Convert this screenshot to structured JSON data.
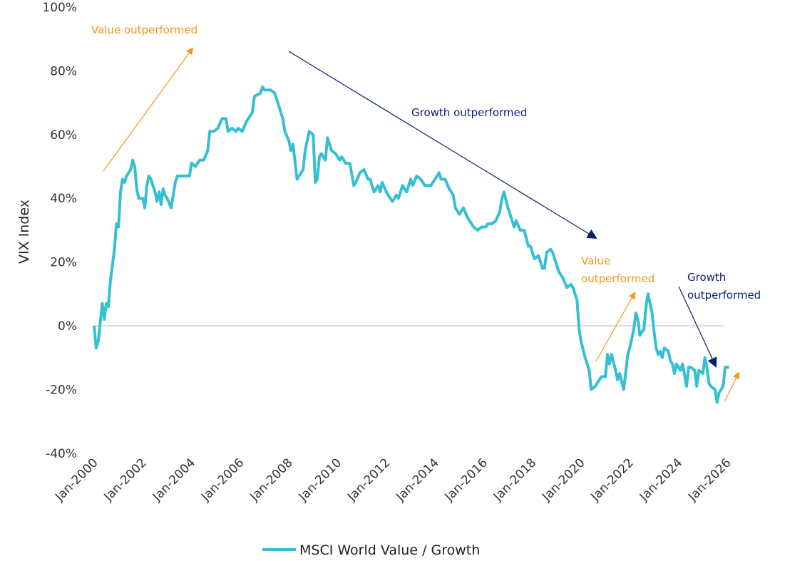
{
  "chart_data": {
    "type": "line",
    "title": "",
    "xlabel": "",
    "ylabel": "VIX Index",
    "ylim": [
      -40,
      100
    ],
    "yticks": [
      "100%",
      "80%",
      "60%",
      "40%",
      "20%",
      "0%",
      "-20%",
      "-40%"
    ],
    "ytick_values": [
      100,
      80,
      60,
      40,
      20,
      0,
      -20,
      -40
    ],
    "xticks": [
      "Jan-2000",
      "Jan-2002",
      "Jan-2004",
      "Jan-2006",
      "Jan-2008",
      "Jan-2010",
      "Jan-2012",
      "Jan-2014",
      "Jan-2016",
      "Jan-2018",
      "Jan-2020",
      "Jan-2022",
      "Jan-2024",
      "Jan-2026"
    ],
    "xlim": [
      "2000-01",
      "2026-03"
    ],
    "grid": false,
    "zero_line": true,
    "legend_placement": "bottom",
    "colors": {
      "series": "#36BFD3",
      "value_annotation": "#F7941D",
      "growth_annotation": "#0B1F6B",
      "zero_line": "#D0D0D0"
    },
    "annotations": [
      {
        "text": "Value outperformed",
        "color": "#F7941D",
        "arrow": "up"
      },
      {
        "text": "Growth outperformed",
        "color": "#0B1F6B",
        "arrow": "down"
      },
      {
        "text_lines": [
          "Value",
          "outperformed"
        ],
        "color": "#F7941D",
        "arrow": "up"
      },
      {
        "text_lines": [
          "Growth",
          "outperformed"
        ],
        "color": "#0B1F6B",
        "arrow": "down"
      },
      {
        "text": "",
        "color": "#F7941D",
        "arrow": "up"
      }
    ],
    "series": [
      {
        "name": "MSCI World Value / Growth",
        "x": [
          "2000-01",
          "2000-02",
          "2000-03",
          "2000-05",
          "2000-06",
          "2000-07",
          "2000-08",
          "2000-09",
          "2000-11",
          "2000-12",
          "2001-01",
          "2001-02",
          "2001-03",
          "2001-04",
          "2001-05",
          "2001-07",
          "2001-08",
          "2001-09",
          "2001-10",
          "2001-11",
          "2002-01",
          "2002-02",
          "2002-03",
          "2002-04",
          "2002-05",
          "2002-07",
          "2002-08",
          "2002-09",
          "2002-10",
          "2002-11",
          "2002-12",
          "2003-01",
          "2003-03",
          "2003-05",
          "2003-06",
          "2003-10",
          "2003-12",
          "2004-01",
          "2004-03",
          "2004-05",
          "2004-07",
          "2004-09",
          "2004-10",
          "2004-12",
          "2005-02",
          "2005-04",
          "2005-06",
          "2005-07",
          "2005-09",
          "2005-11",
          "2005-12",
          "2006-02",
          "2006-04",
          "2006-06",
          "2006-07",
          "2006-08",
          "2006-11",
          "2006-12",
          "2007-01",
          "2007-04",
          "2007-06",
          "2007-08",
          "2007-10",
          "2007-11",
          "2008-01",
          "2008-02",
          "2008-03",
          "2008-05",
          "2008-08",
          "2008-09",
          "2008-11",
          "2009-01",
          "2009-02",
          "2009-03",
          "2009-04",
          "2009-05",
          "2009-07",
          "2009-08",
          "2009-10",
          "2009-12",
          "2010-02",
          "2010-03",
          "2010-05",
          "2010-07",
          "2010-09",
          "2010-10",
          "2010-12",
          "2011-02",
          "2011-04",
          "2011-05",
          "2011-07",
          "2011-09",
          "2011-10",
          "2011-11",
          "2012-01",
          "2012-02",
          "2012-04",
          "2012-06",
          "2012-07",
          "2012-09",
          "2012-11",
          "2013-01",
          "2013-02",
          "2013-04",
          "2013-06",
          "2013-08",
          "2013-09",
          "2013-11",
          "2014-01",
          "2014-03",
          "2014-04",
          "2014-06",
          "2014-08",
          "2014-10",
          "2014-11",
          "2015-01",
          "2015-03",
          "2015-05",
          "2015-07",
          "2015-08",
          "2015-10",
          "2015-12",
          "2016-02",
          "2016-03",
          "2016-05",
          "2016-07",
          "2016-09",
          "2016-10",
          "2016-11",
          "2017-01",
          "2017-02",
          "2017-04",
          "2017-05",
          "2017-07",
          "2017-09",
          "2017-11",
          "2017-12",
          "2018-02",
          "2018-04",
          "2018-06",
          "2018-07",
          "2018-08",
          "2018-10",
          "2018-11",
          "2019-01",
          "2019-02",
          "2019-04",
          "2019-06",
          "2019-08",
          "2019-09",
          "2019-11",
          "2019-12",
          "2020-01",
          "2020-03",
          "2020-05",
          "2020-06",
          "2020-08",
          "2020-10",
          "2020-11",
          "2021-01",
          "2021-02",
          "2021-03",
          "2021-04",
          "2021-06",
          "2021-07",
          "2021-08",
          "2021-10",
          "2021-12",
          "2022-01",
          "2022-03",
          "2022-04",
          "2022-05",
          "2022-06",
          "2022-08",
          "2022-09",
          "2022-10",
          "2022-12",
          "2023-01",
          "2023-02",
          "2023-03",
          "2023-04",
          "2023-05",
          "2023-06",
          "2023-08",
          "2023-09",
          "2023-10",
          "2023-11",
          "2023-12",
          "2024-02",
          "2024-03",
          "2024-05",
          "2024-06",
          "2024-07",
          "2024-09",
          "2024-10",
          "2024-11",
          "2025-01",
          "2025-02",
          "2025-03",
          "2025-04",
          "2025-05",
          "2025-07",
          "2025-08",
          "2025-09",
          "2025-11",
          "2025-12",
          "2026-02"
        ],
        "values": [
          0,
          -7,
          -5,
          7,
          2,
          7,
          6,
          14,
          24,
          32,
          31,
          42,
          46,
          45,
          47,
          49,
          52,
          50,
          43,
          40,
          40,
          37,
          44,
          47,
          46,
          42,
          39,
          42,
          38,
          43,
          41,
          40,
          37,
          45,
          47,
          47,
          47,
          51,
          50,
          52,
          52,
          55,
          61,
          61,
          62,
          65,
          65,
          61,
          62,
          61,
          62,
          61,
          64,
          66,
          67,
          72,
          73,
          75,
          74,
          74,
          73,
          69,
          65,
          61,
          58,
          55,
          57,
          46,
          49,
          55,
          61,
          60,
          45,
          46,
          53,
          54,
          52,
          59,
          55,
          54,
          52,
          53,
          51,
          51,
          44,
          45,
          48,
          49,
          46,
          46,
          42,
          44,
          42,
          45,
          42,
          41,
          39,
          41,
          40,
          44,
          42,
          46,
          44,
          47,
          46,
          44,
          44,
          44,
          46,
          48,
          46,
          46,
          43,
          41,
          37,
          35,
          37,
          34,
          32,
          31,
          30,
          31,
          31,
          32,
          32,
          33,
          36,
          40,
          42,
          37,
          35,
          31,
          33,
          30,
          30,
          25,
          25,
          21,
          22,
          18,
          18,
          23,
          24,
          23,
          19,
          17,
          15,
          12,
          13,
          12,
          8,
          -1,
          -5,
          -10,
          -14,
          -20,
          -19,
          -17,
          -16,
          -16,
          -9,
          -12,
          -9,
          -14,
          -17,
          -15,
          -20,
          -9,
          -7,
          -1,
          4,
          2,
          -3,
          -1,
          6,
          10,
          4,
          -2,
          -7,
          -9,
          -8,
          -10,
          -7,
          -8,
          -11,
          -12,
          -15,
          -12,
          -14,
          -12,
          -19,
          -13,
          -13,
          -14,
          -19,
          -14,
          -15,
          -10,
          -13,
          -18,
          -19,
          -20,
          -24,
          -21,
          -19,
          -13,
          -13
        ]
      }
    ]
  },
  "legend": {
    "label": "MSCI World Value / Growth"
  }
}
